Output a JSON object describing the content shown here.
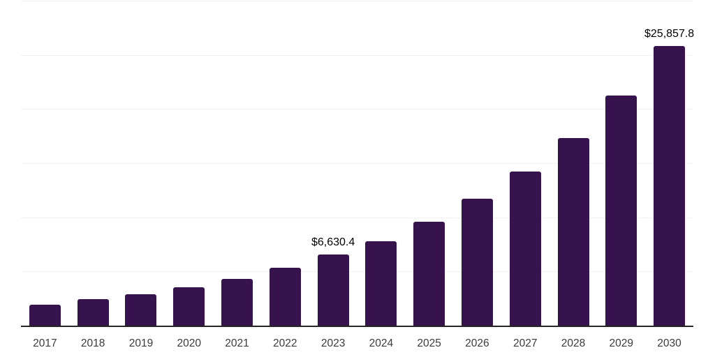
{
  "chart_data": {
    "type": "bar",
    "title": "",
    "xlabel": "",
    "ylabel": "",
    "categories": [
      "2017",
      "2018",
      "2019",
      "2020",
      "2021",
      "2022",
      "2023",
      "2024",
      "2025",
      "2026",
      "2027",
      "2028",
      "2029",
      "2030"
    ],
    "values": [
      2000,
      2510,
      2960,
      3610,
      4380,
      5410,
      6630.4,
      7860,
      9660,
      11780,
      14290,
      17380,
      21310,
      25857.8
    ],
    "data_labels": [
      {
        "category": "2023",
        "text": "$6,630.4"
      },
      {
        "category": "2030",
        "text": "$25,857.8"
      }
    ],
    "ylim": [
      0,
      30000
    ],
    "gridline_interval": 5000,
    "grid": "horizontal, no y tick labels",
    "legend_position": "none",
    "colors": {
      "bar": "#36134d",
      "gridline": "#f2f2f2",
      "axis_line": "#262626",
      "tick_label": "#3b3b3b",
      "data_label": "#000000",
      "background": "#ffffff"
    }
  }
}
